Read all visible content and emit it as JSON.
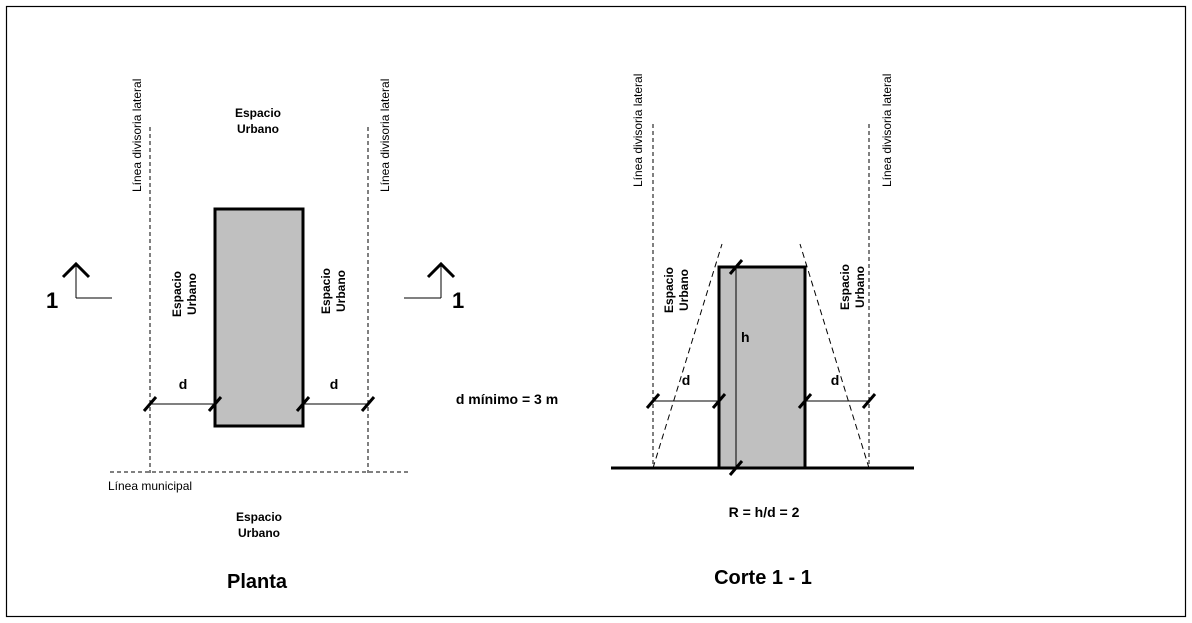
{
  "labels": {
    "lateral_line": "Línea divisoria lateral",
    "urban_space_line1": "Espacio",
    "urban_space_line2": "Urbano",
    "section_mark": "1",
    "distance": "d",
    "height": "h",
    "municipal_line": "Línea municipal",
    "min_distance": "d mínimo = 3 m",
    "ratio": "R = h/d = 2",
    "plan_title": "Planta",
    "section_title": "Corte 1 - 1"
  },
  "colors": {
    "building_fill": "#c0c0c0",
    "line": "#000000"
  }
}
